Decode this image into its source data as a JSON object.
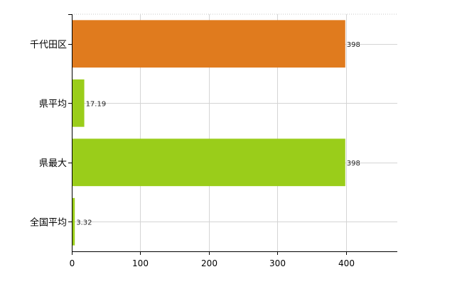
{
  "chart_data": {
    "type": "bar",
    "orientation": "horizontal",
    "categories": [
      "千代田区",
      "県平均",
      "県最大",
      "全国平均"
    ],
    "values": [
      398,
      17.19,
      398,
      3.32
    ],
    "value_labels": [
      "398",
      "17.19",
      "398",
      "3.32"
    ],
    "bar_colors": [
      "#e07b1e",
      "#9acd1a",
      "#9acd1a",
      "#9acd1a"
    ],
    "xlim": [
      0,
      475
    ],
    "x_ticks": [
      0,
      100,
      200,
      300,
      400
    ],
    "x_tick_labels": [
      "0",
      "100",
      "200",
      "300",
      "400"
    ],
    "grid": true,
    "title": "",
    "xlabel": "",
    "ylabel": ""
  }
}
